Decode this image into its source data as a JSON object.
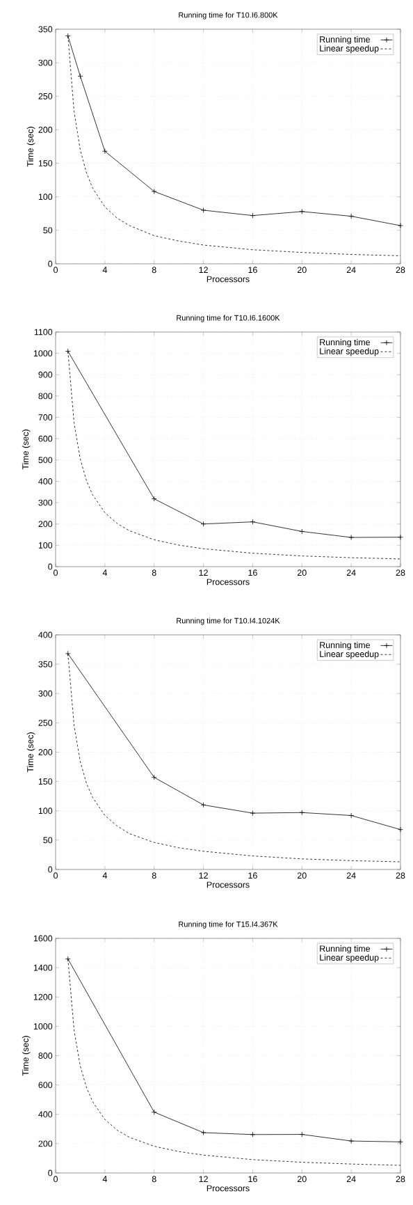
{
  "chart_data": [
    {
      "type": "line",
      "title": "Running time for T10.I6.800K",
      "xlabel": "Processors",
      "ylabel": "Time (sec)",
      "xlim": [
        0,
        28
      ],
      "ylim": [
        0,
        350
      ],
      "xticks": [
        0,
        4,
        8,
        12,
        16,
        20,
        24,
        28
      ],
      "yticks": [
        0,
        50,
        100,
        150,
        200,
        250,
        300,
        350
      ],
      "grid": true,
      "legend": "top right",
      "series": [
        {
          "name": "Running time",
          "color": "#000000",
          "marker": "cross",
          "line_style": "solid",
          "x": [
            1,
            2,
            4,
            8,
            12,
            16,
            20,
            24,
            28
          ],
          "values": [
            340,
            280,
            168,
            108,
            80,
            72,
            78,
            71,
            57
          ]
        },
        {
          "name": "Linear speedup",
          "color": "#000000",
          "marker": "none",
          "line_style": "dashed",
          "x": [
            1,
            1.5,
            2,
            2.5,
            3,
            4,
            5,
            6,
            8,
            10,
            12,
            16,
            20,
            24,
            28
          ],
          "values": [
            340,
            227,
            170,
            136,
            113,
            85,
            68,
            57,
            42,
            34,
            28,
            21,
            17,
            14,
            12
          ]
        }
      ]
    },
    {
      "type": "line",
      "title": "Running time for T10.I6.1600K",
      "xlabel": "Processors",
      "ylabel": "Time (sec)",
      "xlim": [
        0,
        28
      ],
      "ylim": [
        0,
        1100
      ],
      "xticks": [
        0,
        4,
        8,
        12,
        16,
        20,
        24,
        28
      ],
      "yticks": [
        0,
        100,
        200,
        300,
        400,
        500,
        600,
        700,
        800,
        900,
        1000,
        1100
      ],
      "grid": true,
      "legend": "top right",
      "series": [
        {
          "name": "Running time",
          "color": "#000000",
          "marker": "cross",
          "line_style": "solid",
          "x": [
            1,
            8,
            12,
            16,
            20,
            24,
            28
          ],
          "values": [
            1010,
            318,
            200,
            210,
            165,
            137,
            138
          ]
        },
        {
          "name": "Linear speedup",
          "color": "#000000",
          "marker": "none",
          "line_style": "dashed",
          "x": [
            1,
            1.5,
            2,
            2.5,
            3,
            4,
            5,
            6,
            8,
            10,
            12,
            16,
            20,
            24,
            28
          ],
          "values": [
            1010,
            673,
            505,
            404,
            337,
            253,
            202,
            168,
            126,
            101,
            84,
            63,
            50,
            42,
            36
          ]
        }
      ]
    },
    {
      "type": "line",
      "title": "Running time for T10.I4.1024K",
      "xlabel": "Processors",
      "ylabel": "Time (sec)",
      "xlim": [
        0,
        28
      ],
      "ylim": [
        0,
        400
      ],
      "xticks": [
        0,
        4,
        8,
        12,
        16,
        20,
        24,
        28
      ],
      "yticks": [
        0,
        50,
        100,
        150,
        200,
        250,
        300,
        350,
        400
      ],
      "grid": true,
      "legend": "top right",
      "series": [
        {
          "name": "Running time",
          "color": "#000000",
          "marker": "cross",
          "line_style": "solid",
          "x": [
            1,
            8,
            12,
            16,
            20,
            24,
            28
          ],
          "values": [
            368,
            157,
            110,
            96,
            97,
            92,
            68
          ]
        },
        {
          "name": "Linear speedup",
          "color": "#000000",
          "marker": "none",
          "line_style": "dashed",
          "x": [
            1,
            1.5,
            2,
            2.5,
            3,
            4,
            5,
            6,
            8,
            10,
            12,
            16,
            20,
            24,
            28
          ],
          "values": [
            368,
            245,
            184,
            147,
            123,
            92,
            74,
            61,
            46,
            37,
            31,
            23,
            18,
            15,
            13
          ]
        }
      ]
    },
    {
      "type": "line",
      "title": "Running time for T15.I4.367K",
      "xlabel": "Processors",
      "ylabel": "Time (sec)",
      "xlim": [
        0,
        28
      ],
      "ylim": [
        0,
        1600
      ],
      "xticks": [
        0,
        4,
        8,
        12,
        16,
        20,
        24,
        28
      ],
      "yticks": [
        0,
        200,
        400,
        600,
        800,
        1000,
        1200,
        1400,
        1600
      ],
      "grid": true,
      "legend": "top right",
      "series": [
        {
          "name": "Running time",
          "color": "#000000",
          "marker": "cross",
          "line_style": "solid",
          "x": [
            1,
            8,
            12,
            16,
            20,
            24,
            28
          ],
          "values": [
            1460,
            415,
            275,
            262,
            263,
            218,
            212
          ]
        },
        {
          "name": "Linear speedup",
          "color": "#000000",
          "marker": "none",
          "line_style": "dashed",
          "x": [
            1,
            1.5,
            2,
            2.5,
            3,
            4,
            5,
            6,
            8,
            10,
            12,
            16,
            20,
            24,
            28
          ],
          "values": [
            1460,
            973,
            730,
            584,
            487,
            365,
            292,
            243,
            182,
            146,
            122,
            91,
            73,
            61,
            52
          ]
        }
      ]
    }
  ]
}
